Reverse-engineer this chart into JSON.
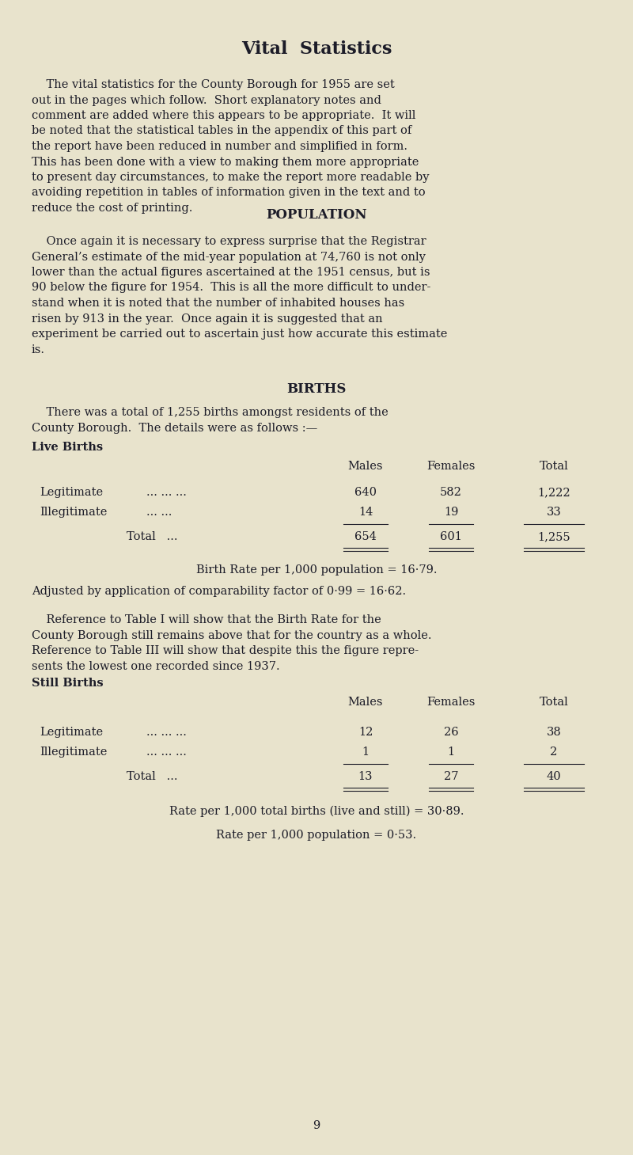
{
  "background_color": "#e8e3cc",
  "text_color": "#1c1c28",
  "title": "Vital  Statistics",
  "title_fontsize": 16,
  "section_fontsize": 12,
  "body_fontsize": 10.5,
  "table_fontsize": 10.5,
  "page_number": "9",
  "live_births_heading": "Live Births",
  "still_births_heading": "Still Births",
  "birth_rate_text": "Birth Rate per 1,000 population = 16·79.",
  "adjusted_text": "Adjusted by application of comparability factor of 0·99 = 16·62.",
  "still_rate_text_1": "Rate per 1,000 total births (live and still) = 30·89.",
  "still_rate_text_2": "Rate per 1,000 population = 0·53.",
  "population_heading": "POPULATION",
  "births_heading": "BIRTHS"
}
